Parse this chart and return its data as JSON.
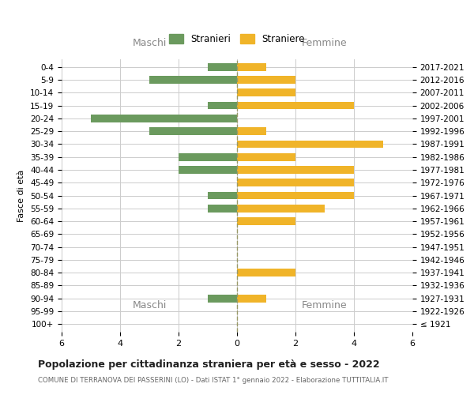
{
  "age_groups": [
    "100+",
    "95-99",
    "90-94",
    "85-89",
    "80-84",
    "75-79",
    "70-74",
    "65-69",
    "60-64",
    "55-59",
    "50-54",
    "45-49",
    "40-44",
    "35-39",
    "30-34",
    "25-29",
    "20-24",
    "15-19",
    "10-14",
    "5-9",
    "0-4"
  ],
  "birth_years": [
    "≤ 1921",
    "1922-1926",
    "1927-1931",
    "1932-1936",
    "1937-1941",
    "1942-1946",
    "1947-1951",
    "1952-1956",
    "1957-1961",
    "1962-1966",
    "1967-1971",
    "1972-1976",
    "1977-1981",
    "1982-1986",
    "1987-1991",
    "1992-1996",
    "1997-2001",
    "2002-2006",
    "2007-2011",
    "2012-2016",
    "2017-2021"
  ],
  "maschi": [
    0,
    0,
    1,
    0,
    0,
    0,
    0,
    0,
    0,
    1,
    1,
    0,
    2,
    2,
    0,
    3,
    5,
    1,
    0,
    3,
    1
  ],
  "femmine": [
    0,
    0,
    1,
    0,
    2,
    0,
    0,
    0,
    2,
    3,
    4,
    4,
    4,
    2,
    5,
    1,
    0,
    4,
    2,
    2,
    1
  ],
  "color_maschi": "#6b9a5e",
  "color_femmine": "#f0b429",
  "title": "Popolazione per cittadinanza straniera per età e sesso - 2022",
  "subtitle": "COMUNE DI TERRANOVA DEI PASSERINI (LO) - Dati ISTAT 1° gennaio 2022 - Elaborazione TUTTITALIA.IT",
  "xlabel_left": "Maschi",
  "xlabel_right": "Femmine",
  "ylabel_left": "Fasce di età",
  "legend_maschi": "Stranieri",
  "legend_femmine": "Straniere",
  "xlim": 6,
  "background_color": "#ffffff",
  "grid_color": "#cccccc",
  "dashed_line_color": "#999966"
}
